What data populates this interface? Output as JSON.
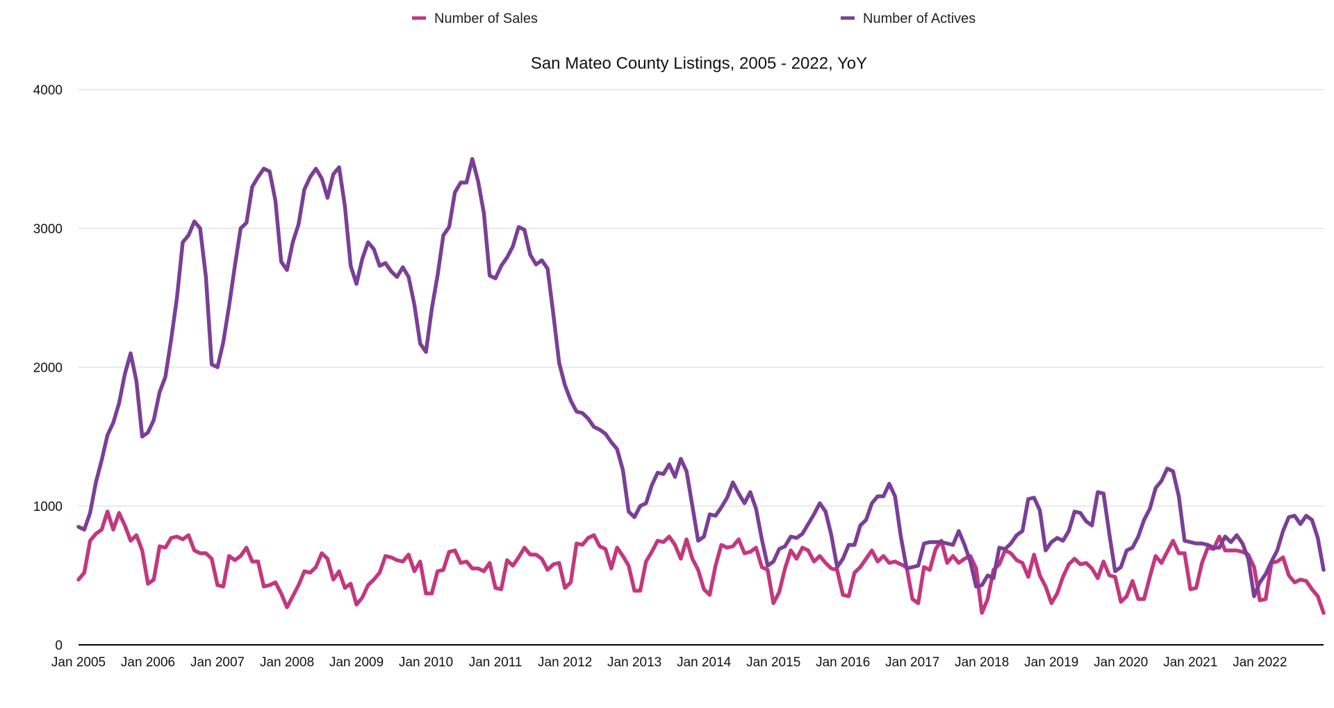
{
  "chart_data": {
    "type": "line",
    "title": "San Mateo County Listings, 2005 - 2022, YoY",
    "xlabel": "",
    "ylabel": "",
    "ylim": [
      0,
      4000
    ],
    "yticks": [
      "0",
      "1000",
      "2000",
      "3000",
      "4000"
    ],
    "xticks": [
      "Jan 2005",
      "Jan 2006",
      "Jan 2007",
      "Jan 2008",
      "Jan 2009",
      "Jan 2010",
      "Jan 2011",
      "Jan 2012",
      "Jan 2013",
      "Jan 2014",
      "Jan 2015",
      "Jan 2016",
      "Jan 2017",
      "Jan 2018",
      "Jan 2019",
      "Jan 2020",
      "Jan 2021",
      "Jan 2022"
    ],
    "x_start": "Jan 2005",
    "x_end": "Dec 2022",
    "grid": true,
    "legend_position": "top",
    "series": [
      {
        "name": "Number of Sales",
        "color": "#c2387e",
        "values": [
          470,
          520,
          750,
          800,
          830,
          960,
          830,
          950,
          860,
          750,
          790,
          680,
          440,
          470,
          710,
          700,
          770,
          780,
          760,
          790,
          680,
          660,
          660,
          620,
          430,
          420,
          640,
          610,
          640,
          700,
          600,
          600,
          420,
          430,
          450,
          370,
          270,
          350,
          430,
          530,
          520,
          560,
          660,
          620,
          470,
          530,
          410,
          440,
          290,
          340,
          430,
          470,
          520,
          640,
          630,
          610,
          600,
          650,
          530,
          600,
          370,
          370,
          530,
          540,
          670,
          680,
          590,
          600,
          550,
          550,
          530,
          590,
          410,
          400,
          610,
          570,
          630,
          700,
          650,
          650,
          620,
          540,
          580,
          590,
          410,
          450,
          730,
          720,
          770,
          790,
          710,
          690,
          550,
          700,
          640,
          570,
          390,
          390,
          600,
          670,
          750,
          740,
          780,
          720,
          620,
          760,
          620,
          540,
          400,
          360,
          570,
          720,
          700,
          710,
          760,
          660,
          670,
          700,
          560,
          540,
          300,
          380,
          550,
          680,
          620,
          700,
          680,
          600,
          640,
          590,
          550,
          540,
          360,
          350,
          520,
          560,
          620,
          680,
          600,
          640,
          590,
          600,
          580,
          560,
          330,
          300,
          560,
          540,
          690,
          750,
          590,
          640,
          590,
          620,
          640,
          550,
          230,
          330,
          540,
          580,
          680,
          660,
          610,
          590,
          490,
          650,
          500,
          420,
          300,
          370,
          490,
          580,
          620,
          580,
          590,
          550,
          480,
          600,
          500,
          490,
          310,
          350,
          460,
          330,
          330,
          490,
          640,
          590,
          670,
          750,
          660,
          660,
          400,
          410,
          590,
          700,
          690,
          780,
          680,
          680,
          680,
          670,
          650,
          560,
          320,
          330,
          590,
          600,
          630,
          500,
          450,
          470,
          460,
          400,
          350,
          230
        ]
      },
      {
        "name": "Number of Actives",
        "color": "#7a3f96",
        "values": [
          850,
          830,
          950,
          1170,
          1330,
          1510,
          1600,
          1740,
          1950,
          2100,
          1900,
          1500,
          1530,
          1620,
          1820,
          1930,
          2200,
          2500,
          2900,
          2950,
          3050,
          3000,
          2650,
          2020,
          2000,
          2180,
          2440,
          2730,
          3000,
          3040,
          3300,
          3370,
          3430,
          3410,
          3200,
          2760,
          2700,
          2900,
          3030,
          3280,
          3370,
          3430,
          3360,
          3220,
          3390,
          3440,
          3160,
          2730,
          2600,
          2780,
          2900,
          2850,
          2730,
          2750,
          2690,
          2650,
          2720,
          2650,
          2450,
          2170,
          2110,
          2420,
          2660,
          2950,
          3010,
          3260,
          3330,
          3330,
          3500,
          3340,
          3110,
          2660,
          2640,
          2730,
          2790,
          2870,
          3010,
          2990,
          2810,
          2740,
          2770,
          2710,
          2380,
          2030,
          1870,
          1760,
          1680,
          1670,
          1630,
          1570,
          1550,
          1520,
          1460,
          1410,
          1260,
          960,
          920,
          1000,
          1020,
          1150,
          1240,
          1230,
          1300,
          1210,
          1340,
          1250,
          1000,
          750,
          780,
          940,
          930,
          990,
          1060,
          1170,
          1090,
          1020,
          1100,
          980,
          760,
          570,
          600,
          690,
          710,
          780,
          770,
          800,
          870,
          940,
          1020,
          960,
          790,
          560,
          620,
          720,
          720,
          860,
          900,
          1020,
          1070,
          1070,
          1160,
          1070,
          780,
          550,
          560,
          570,
          730,
          740,
          740,
          740,
          730,
          720,
          820,
          720,
          600,
          420,
          430,
          500,
          480,
          700,
          690,
          730,
          790,
          820,
          1050,
          1060,
          970,
          680,
          740,
          770,
          750,
          820,
          960,
          950,
          890,
          860,
          1100,
          1090,
          800,
          530,
          560,
          680,
          700,
          780,
          900,
          980,
          1130,
          1180,
          1270,
          1250,
          1070,
          750,
          740,
          730,
          730,
          720,
          700,
          700,
          780,
          740,
          790,
          730,
          620,
          350,
          450,
          510,
          600,
          680,
          820,
          920,
          930,
          870,
          930,
          900,
          770,
          540
        ]
      }
    ]
  }
}
